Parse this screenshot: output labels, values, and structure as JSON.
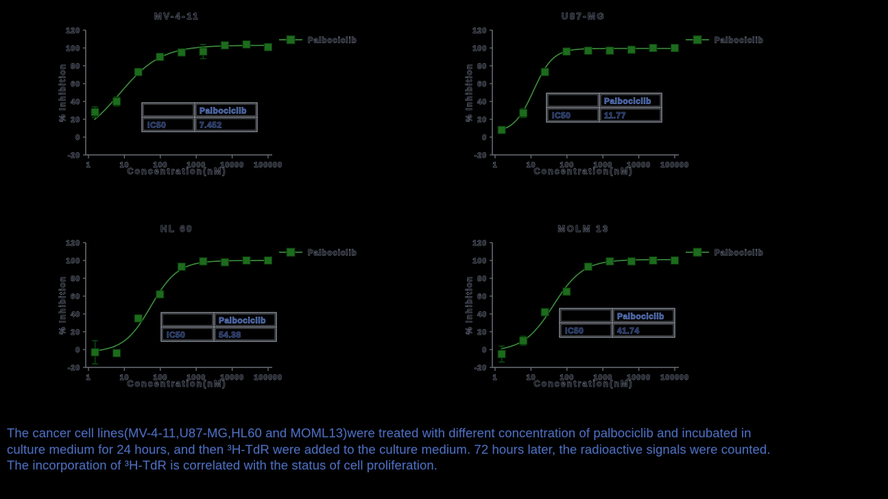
{
  "colors": {
    "background": "#000000",
    "marker_green": "#1d6b1d",
    "marker_edge": "#073408",
    "curve_green": "#3a8a3a",
    "errorbar_green": "#0c4511",
    "axis_gray": "#6b7077",
    "table_border_gray": "#9ba1ab",
    "caption_blue": "#4c6cb8"
  },
  "chart_data": [
    {
      "type": "scatter",
      "title": "MV-4-11",
      "xlabel": "Concentration(nM)",
      "ylabel": "% Inhibition",
      "xscale": "log",
      "xlim": [
        1,
        100000
      ],
      "ylim": [
        -20,
        120
      ],
      "xticks": [
        1,
        10,
        100,
        1000,
        10000,
        100000
      ],
      "yticks": [
        -20,
        0,
        20,
        40,
        60,
        80,
        100,
        120
      ],
      "legend_position": "right",
      "series": [
        {
          "name": "Palbociclib",
          "x": [
            1.526,
            6.104,
            24.41,
            97.66,
            390.6,
            1562.5,
            6250,
            25000,
            100000
          ],
          "y": [
            28,
            40,
            73,
            90,
            95,
            96,
            103,
            104,
            101
          ],
          "yerr": [
            6,
            5,
            3,
            3,
            2,
            8,
            2,
            2,
            2
          ]
        }
      ],
      "fit": {
        "model": "4PL",
        "bottom": -5,
        "top": 103,
        "ic50": 7.452,
        "hill": 0.75
      },
      "ic50_table": {
        "col_header": "Palbociclib",
        "row_header": "IC50",
        "value": "7.452"
      }
    },
    {
      "type": "scatter",
      "title": "U87-MG",
      "xlabel": "Concentration(nM)",
      "ylabel": "% Inhibition",
      "xscale": "log",
      "xlim": [
        1,
        100000
      ],
      "ylim": [
        -20,
        120
      ],
      "xticks": [
        1,
        10,
        100,
        1000,
        10000,
        100000
      ],
      "yticks": [
        -20,
        0,
        20,
        40,
        60,
        80,
        100,
        120
      ],
      "legend_position": "right",
      "series": [
        {
          "name": "Palbociclib",
          "x": [
            1.526,
            6.104,
            24.41,
            97.66,
            390.6,
            1562.5,
            6250,
            25000,
            100000
          ],
          "y": [
            8,
            27,
            73,
            96,
            97,
            97,
            98,
            100,
            100
          ],
          "yerr": [
            2,
            5,
            2,
            2,
            2,
            2,
            2,
            2,
            2
          ]
        }
      ],
      "fit": {
        "model": "4PL",
        "bottom": 5,
        "top": 99.5,
        "ic50": 11.77,
        "hill": 1.6
      },
      "ic50_table": {
        "col_header": "Palbociclib",
        "row_header": "IC50",
        "value": "11.77"
      }
    },
    {
      "type": "scatter",
      "title": "HL 60",
      "xlabel": "Concentration(nM)",
      "ylabel": "% Inhibition",
      "xscale": "log",
      "xlim": [
        1,
        100000
      ],
      "ylim": [
        -20,
        120
      ],
      "xticks": [
        1,
        10,
        100,
        1000,
        10000,
        100000
      ],
      "yticks": [
        -20,
        0,
        20,
        40,
        60,
        80,
        100,
        120
      ],
      "legend_position": "right",
      "series": [
        {
          "name": "Palbociclib",
          "x": [
            1.526,
            6.104,
            24.41,
            97.66,
            390.6,
            1562.5,
            6250,
            25000,
            100000
          ],
          "y": [
            -3,
            -4,
            35,
            62,
            93,
            99,
            98,
            100,
            100
          ],
          "yerr": [
            13,
            2,
            3,
            2,
            2,
            2,
            2,
            2,
            2
          ]
        }
      ],
      "fit": {
        "model": "4PL",
        "bottom": -3,
        "top": 100,
        "ic50": 54.38,
        "hill": 1.15
      },
      "ic50_table": {
        "col_header": "Palbociclib",
        "row_header": "IC50",
        "value": "54.38"
      }
    },
    {
      "type": "scatter",
      "title": "MOLM 13",
      "xlabel": "Concentration(nM)",
      "ylabel": "% Inhibition",
      "xscale": "log",
      "xlim": [
        1,
        100000
      ],
      "ylim": [
        -20,
        120
      ],
      "xticks": [
        1,
        10,
        100,
        1000,
        10000,
        100000
      ],
      "yticks": [
        -20,
        0,
        20,
        40,
        60,
        80,
        100,
        120
      ],
      "legend_position": "right",
      "series": [
        {
          "name": "Palbociclib",
          "x": [
            1.526,
            6.104,
            24.41,
            97.66,
            390.6,
            1562.5,
            6250,
            25000,
            100000
          ],
          "y": [
            -5,
            10,
            42,
            65,
            93,
            99,
            99,
            100,
            100
          ],
          "yerr": [
            9,
            5,
            3,
            3,
            2,
            2,
            2,
            2,
            2
          ]
        }
      ],
      "fit": {
        "model": "4PL",
        "bottom": -2,
        "top": 101,
        "ic50": 41.74,
        "hill": 1.05
      },
      "ic50_table": {
        "col_header": "Palbociclib",
        "row_header": "IC50",
        "value": "41.74"
      }
    }
  ],
  "caption": {
    "lines": [
      "The cancer cell lines(MV-4-11,U87-MG,HL60 and MOML13)were treated with different concentration of palbociclib and incubated in",
      "culture medium for 24 hours, and then ³H-TdR were added to the culture medium. 72 hours later, the radioactive signals were counted.",
      "The incorporation of ³H-TdR is correlated with the status of cell proliferation."
    ]
  }
}
